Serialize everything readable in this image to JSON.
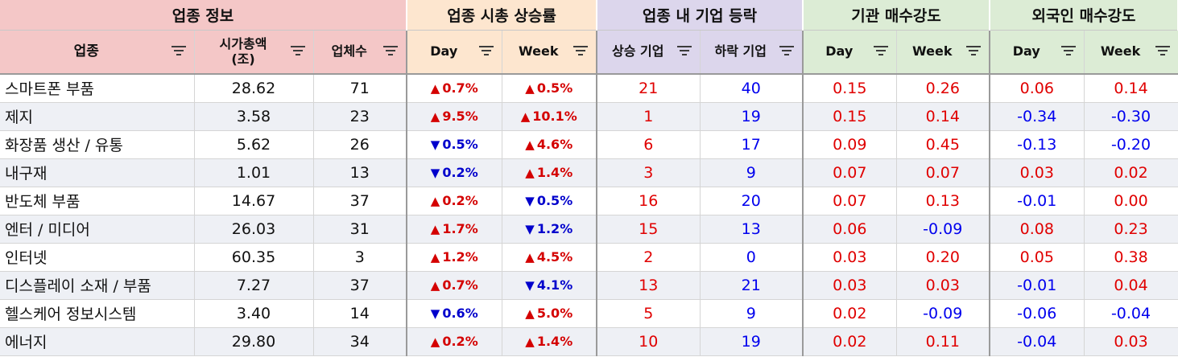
{
  "group_headers": [
    "업종 정보",
    "업종 시총 상승률",
    "업종 내 기업 등락",
    "기관 매수강도",
    "외국인 매수강도"
  ],
  "column_headers": {
    "sector": "업종",
    "market_cap_line1": "시가총액",
    "market_cap_line2": "(조)",
    "company_count": "업체수",
    "mcap_day": "Day",
    "mcap_week": "Week",
    "rising": "상승 기업",
    "falling": "하락 기업",
    "inst_day": "Day",
    "inst_week": "Week",
    "frgn_day": "Day",
    "frgn_week": "Week"
  },
  "icons": {
    "filter": "filter-icon",
    "up": "▲",
    "down": "▼"
  },
  "colors": {
    "positive": "#e00000",
    "negative": "#0000ee"
  },
  "rows": [
    {
      "sector": "스마트폰 부품",
      "market_cap": "28.62",
      "companies": "71",
      "day_dir": "up",
      "day": "0.7%",
      "week_dir": "up",
      "week": "0.5%",
      "rising": "21",
      "falling": "40",
      "inst_day": "0.15",
      "inst_week": "0.26",
      "frgn_day": "0.06",
      "frgn_week": "0.14"
    },
    {
      "sector": "제지",
      "market_cap": "3.58",
      "companies": "23",
      "day_dir": "up",
      "day": "9.5%",
      "week_dir": "up",
      "week": "10.1%",
      "rising": "1",
      "falling": "19",
      "inst_day": "0.15",
      "inst_week": "0.14",
      "frgn_day": "-0.34",
      "frgn_week": "-0.30"
    },
    {
      "sector": "화장품 생산 / 유통",
      "market_cap": "5.62",
      "companies": "26",
      "day_dir": "down",
      "day": "0.5%",
      "week_dir": "up",
      "week": "4.6%",
      "rising": "6",
      "falling": "17",
      "inst_day": "0.09",
      "inst_week": "0.45",
      "frgn_day": "-0.13",
      "frgn_week": "-0.20"
    },
    {
      "sector": "내구재",
      "market_cap": "1.01",
      "companies": "13",
      "day_dir": "down",
      "day": "0.2%",
      "week_dir": "up",
      "week": "1.4%",
      "rising": "3",
      "falling": "9",
      "inst_day": "0.07",
      "inst_week": "0.07",
      "frgn_day": "0.03",
      "frgn_week": "0.02"
    },
    {
      "sector": "반도체 부품",
      "market_cap": "14.67",
      "companies": "37",
      "day_dir": "up",
      "day": "0.2%",
      "week_dir": "down",
      "week": "0.5%",
      "rising": "16",
      "falling": "20",
      "inst_day": "0.07",
      "inst_week": "0.13",
      "frgn_day": "-0.01",
      "frgn_week": "0.00"
    },
    {
      "sector": "엔터 / 미디어",
      "market_cap": "26.03",
      "companies": "31",
      "day_dir": "up",
      "day": "1.7%",
      "week_dir": "down",
      "week": "1.2%",
      "rising": "15",
      "falling": "13",
      "inst_day": "0.06",
      "inst_week": "-0.09",
      "frgn_day": "0.08",
      "frgn_week": "0.23"
    },
    {
      "sector": "인터넷",
      "market_cap": "60.35",
      "companies": "3",
      "day_dir": "up",
      "day": "1.2%",
      "week_dir": "up",
      "week": "4.5%",
      "rising": "2",
      "falling": "0",
      "inst_day": "0.03",
      "inst_week": "0.20",
      "frgn_day": "0.05",
      "frgn_week": "0.38"
    },
    {
      "sector": "디스플레이 소재 / 부품",
      "market_cap": "7.27",
      "companies": "37",
      "day_dir": "up",
      "day": "0.7%",
      "week_dir": "down",
      "week": "4.1%",
      "rising": "13",
      "falling": "21",
      "inst_day": "0.03",
      "inst_week": "0.03",
      "frgn_day": "-0.01",
      "frgn_week": "0.04"
    },
    {
      "sector": "헬스케어 정보시스템",
      "market_cap": "3.40",
      "companies": "14",
      "day_dir": "down",
      "day": "0.6%",
      "week_dir": "up",
      "week": "5.0%",
      "rising": "5",
      "falling": "9",
      "inst_day": "0.02",
      "inst_week": "-0.09",
      "frgn_day": "-0.06",
      "frgn_week": "-0.04"
    },
    {
      "sector": "에너지",
      "market_cap": "29.80",
      "companies": "34",
      "day_dir": "up",
      "day": "0.2%",
      "week_dir": "up",
      "week": "1.4%",
      "rising": "10",
      "falling": "19",
      "inst_day": "0.02",
      "inst_week": "0.11",
      "frgn_day": "-0.04",
      "frgn_week": "0.03"
    }
  ]
}
